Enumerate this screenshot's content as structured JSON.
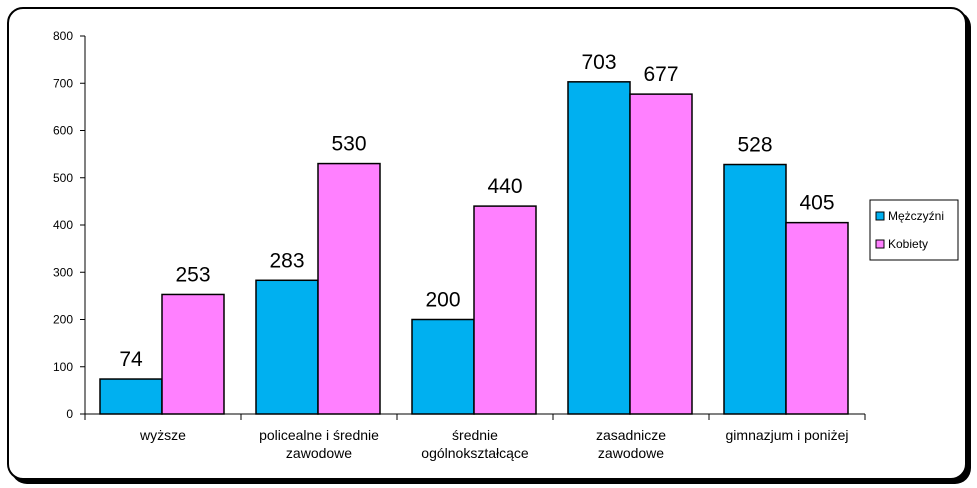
{
  "chart_data": {
    "type": "bar",
    "categories": [
      [
        "wyższe"
      ],
      [
        "policealne i średnie",
        "zawodowe"
      ],
      [
        "średnie",
        "ogólnokształcące"
      ],
      [
        "zasadnicze",
        "zawodowe"
      ],
      [
        "gimnazjum i poniżej"
      ]
    ],
    "series": [
      {
        "name": "Mężczyźni",
        "color": "#00B0F0",
        "values": [
          74,
          283,
          200,
          703,
          528
        ]
      },
      {
        "name": "Kobiety",
        "color": "#FF80FF",
        "values": [
          253,
          530,
          440,
          677,
          405
        ]
      }
    ],
    "y_ticks": [
      0,
      100,
      200,
      300,
      400,
      500,
      600,
      700,
      800
    ],
    "ylim": [
      0,
      800
    ],
    "grid": false,
    "legend_position": "right",
    "data_labels": true,
    "plot_background": "#ffffff",
    "title": "",
    "xlabel": "",
    "ylabel": ""
  }
}
